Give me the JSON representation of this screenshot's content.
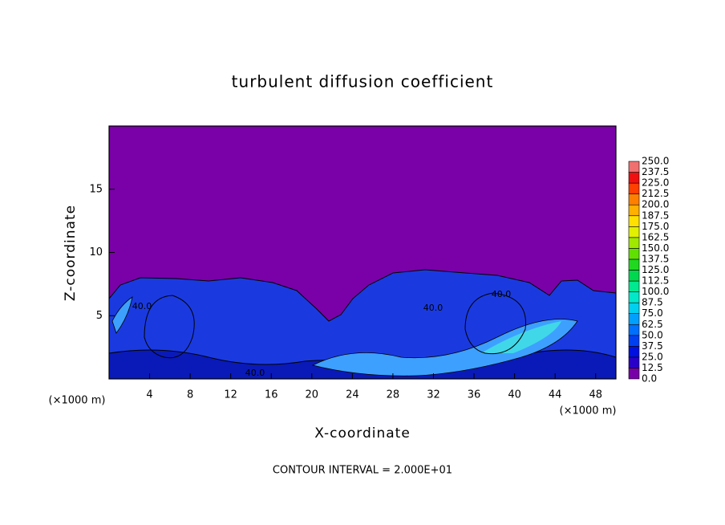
{
  "chart_data": {
    "type": "contour",
    "title": "turbulent diffusion coefficient",
    "x_label": "X-coordinate",
    "y_label": "Z-coordinate",
    "x_unit_left": "(×1000 m)",
    "x_unit_right": "(×1000 m)",
    "footnote": "CONTOUR INTERVAL = 2.000E+01",
    "xlim": [
      0,
      50
    ],
    "ylim": [
      0,
      20
    ],
    "xticks": [
      4,
      8,
      12,
      16,
      20,
      24,
      28,
      32,
      36,
      40,
      44,
      48
    ],
    "yticks": [
      5,
      10,
      15
    ],
    "contour_labels": [
      "40.0",
      "40.0",
      "40.0",
      "40.0"
    ],
    "colorbar": {
      "levels": [
        {
          "value": 0,
          "label": "0.0"
        },
        {
          "value": 12.5,
          "label": "12.5"
        },
        {
          "value": 25,
          "label": "25.0"
        },
        {
          "value": 37.5,
          "label": "37.5"
        },
        {
          "value": 50,
          "label": "50.0"
        },
        {
          "value": 62.5,
          "label": "62.5"
        },
        {
          "value": 75,
          "label": "75.0"
        },
        {
          "value": 87.5,
          "label": "87.5"
        },
        {
          "value": 100,
          "label": "100.0"
        },
        {
          "value": 112.5,
          "label": "112.5"
        },
        {
          "value": 125,
          "label": "125.0"
        },
        {
          "value": 137.5,
          "label": "137.5"
        },
        {
          "value": 150,
          "label": "150.0"
        },
        {
          "value": 162.5,
          "label": "162.5"
        },
        {
          "value": 175,
          "label": "175.0"
        },
        {
          "value": 187.5,
          "label": "187.5"
        },
        {
          "value": 200,
          "label": "200.0"
        },
        {
          "value": 212.5,
          "label": "212.5"
        },
        {
          "value": 225,
          "label": "225.0"
        },
        {
          "value": 237.5,
          "label": "237.5"
        },
        {
          "value": 250,
          "label": "250.0"
        }
      ],
      "colors": [
        "#7800a8",
        "#2800c8",
        "#0010e0",
        "#0040f0",
        "#0070ff",
        "#00a0ff",
        "#00d0f0",
        "#00e8c8",
        "#00e890",
        "#00d850",
        "#20d820",
        "#60e000",
        "#a0e800",
        "#e0f000",
        "#ffe000",
        "#ffb000",
        "#ff8000",
        "#ff4000",
        "#f01010",
        "#f07070"
      ]
    }
  }
}
